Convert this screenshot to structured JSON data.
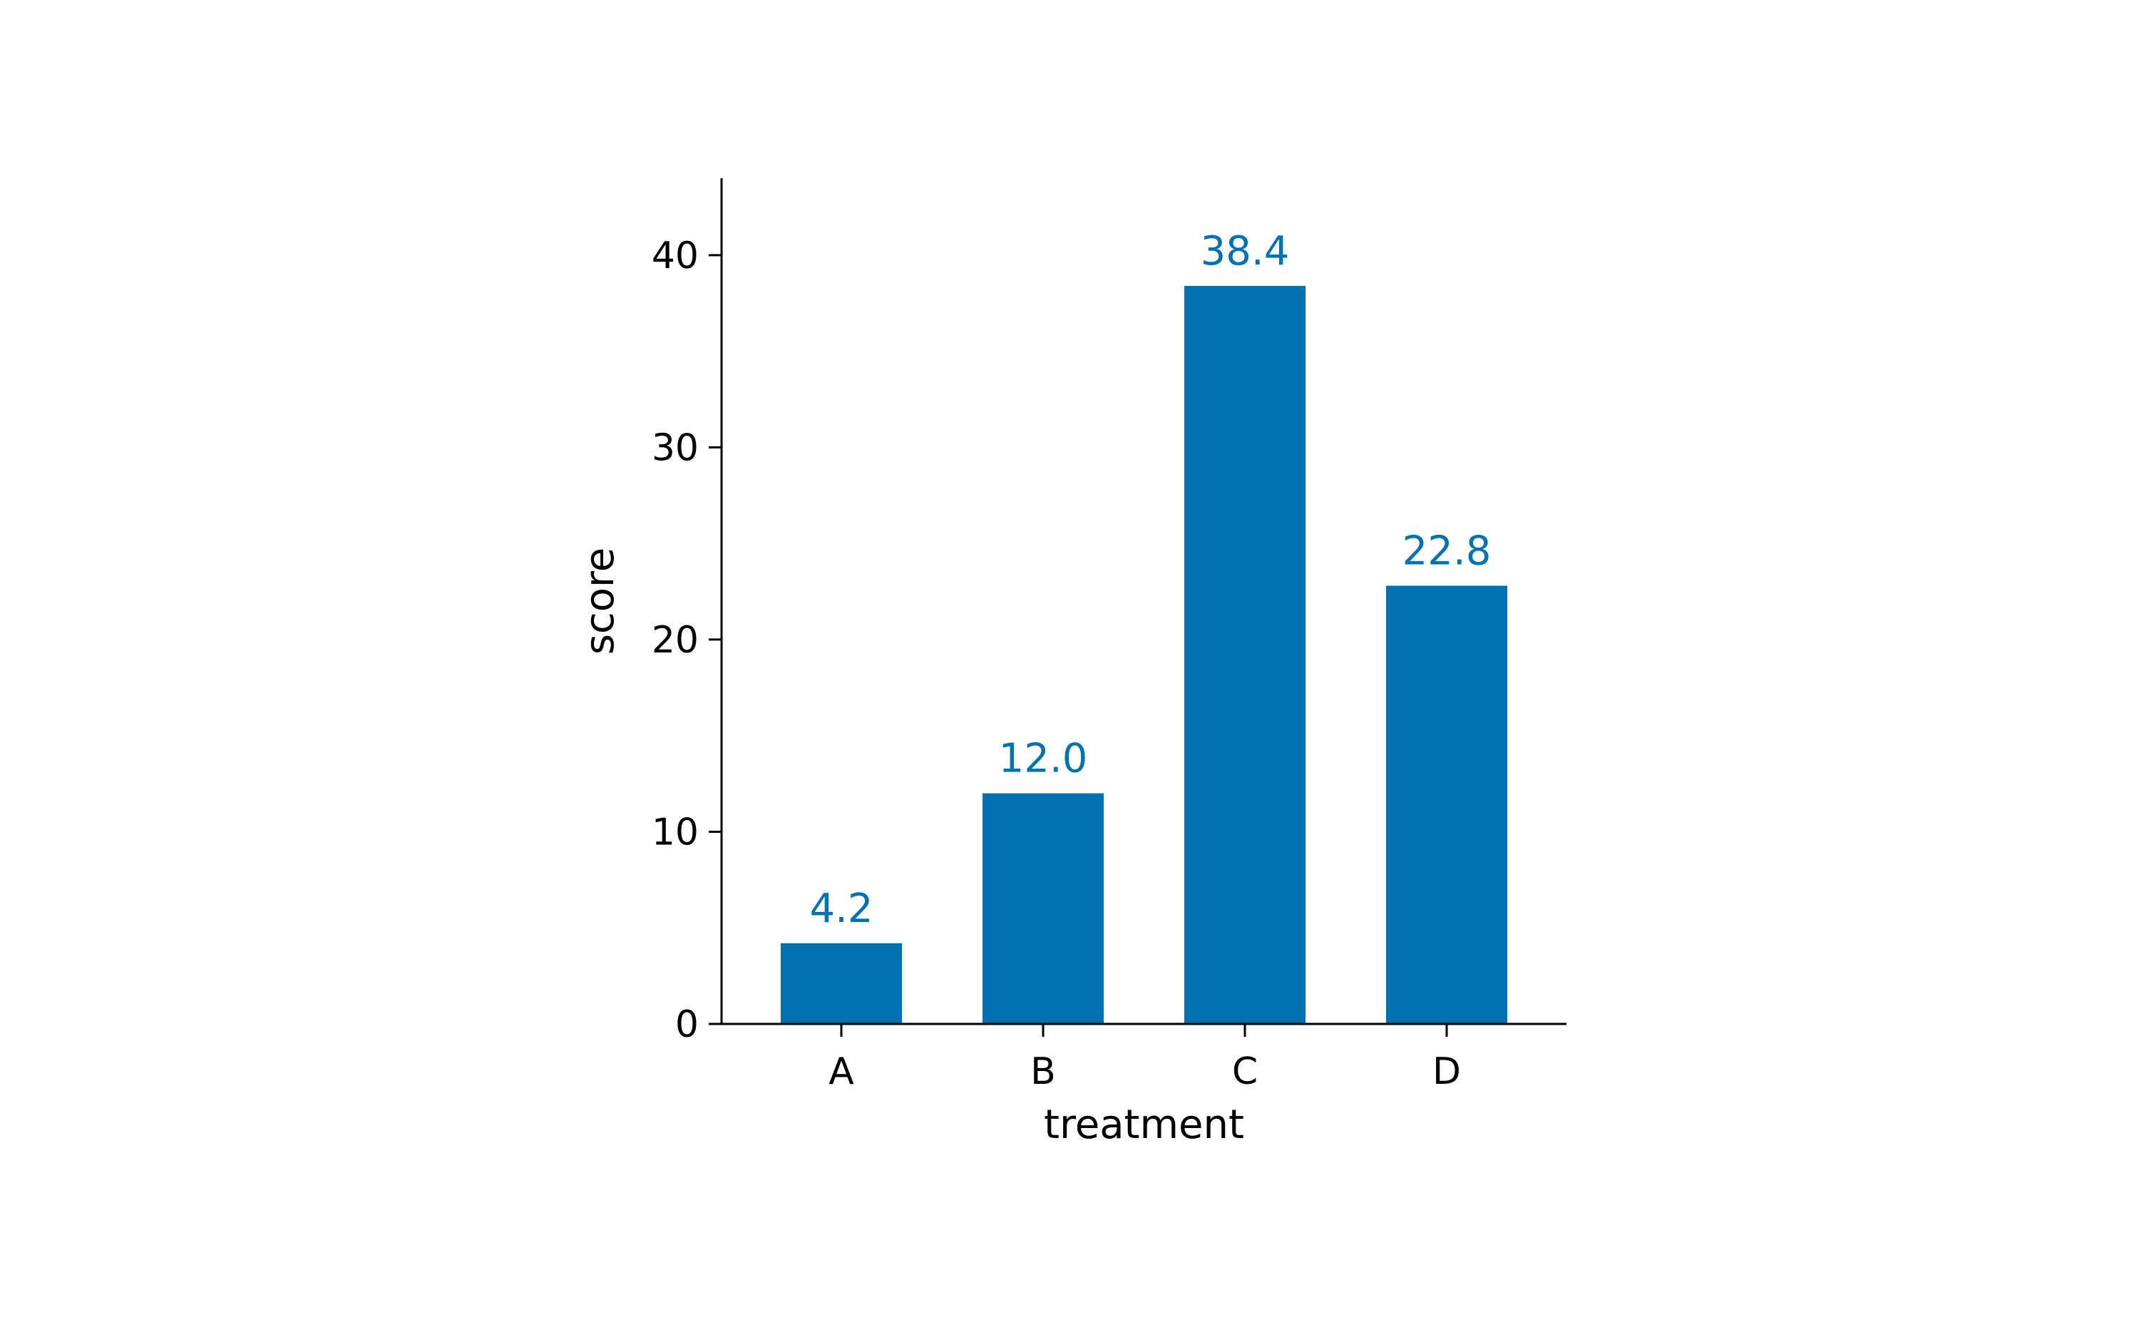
{
  "chart_data": {
    "type": "bar",
    "categories": [
      "A",
      "B",
      "C",
      "D"
    ],
    "values": [
      4.2,
      12.0,
      38.4,
      22.8
    ],
    "value_labels": [
      "4.2",
      "12.0",
      "38.4",
      "22.8"
    ],
    "title": "",
    "xlabel": "treatment",
    "ylabel": "score",
    "ylim": [
      0,
      44
    ],
    "yticks": [
      0,
      10,
      20,
      30,
      40
    ],
    "grid": false,
    "legend": "none",
    "bar_color": "#0072B2",
    "label_color": "#0072B2"
  }
}
